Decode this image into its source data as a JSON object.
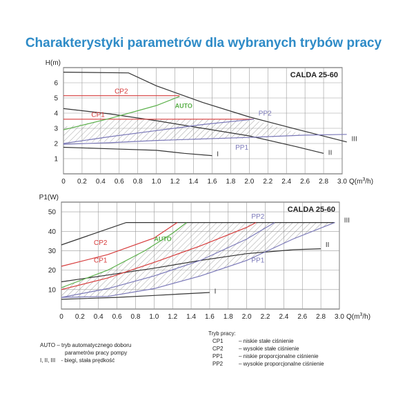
{
  "page_title": "Charakterystyki parametrów dla wybranych trybów pracy",
  "chart_data": [
    {
      "type": "line",
      "title": "CALDA 25-60",
      "ylabel": "H(m)",
      "xlabel_main": "Q(m",
      "xlabel_sup": "3",
      "xlabel_end": "/h)",
      "xlim": [
        0,
        3.0
      ],
      "ylim": [
        0,
        7
      ],
      "xticks": [
        0,
        0.2,
        0.4,
        0.6,
        0.8,
        1.0,
        1.2,
        1.4,
        1.6,
        1.8,
        2.0,
        2.2,
        2.4,
        2.6,
        2.8,
        3.0
      ],
      "xtick_labels": [
        "0",
        "0.2",
        "0.4",
        "0.6",
        "0.8",
        "1.0",
        "1.2",
        "1.4",
        "1.6",
        "1.8",
        "2.0",
        "2.2",
        "2.4",
        "2.6",
        "2.8",
        "3.0"
      ],
      "yticks": [
        1,
        2,
        3,
        4,
        5,
        6
      ],
      "ytick_labels": [
        "1",
        "2",
        "3",
        "4",
        "5",
        "6"
      ],
      "grid": true,
      "hatched_region": [
        [
          0,
          3.1
        ],
        [
          0.5,
          3.55
        ],
        [
          1.0,
          3.62
        ],
        [
          1.5,
          3.62
        ],
        [
          2.0,
          3.6
        ],
        [
          2.05,
          3.55
        ],
        [
          2.6,
          2.55
        ],
        [
          3.05,
          2.1
        ],
        [
          2.6,
          2.55
        ],
        [
          2.1,
          2.35
        ],
        [
          1.5,
          2.25
        ],
        [
          1.0,
          2.15
        ],
        [
          0.5,
          2.1
        ],
        [
          0,
          2.05
        ]
      ],
      "series": [
        {
          "name": "III",
          "color": "#333333",
          "points": [
            [
              0,
              6.7
            ],
            [
              0.7,
              6.65
            ],
            [
              1.0,
              5.8
            ],
            [
              1.5,
              4.7
            ],
            [
              2.0,
              3.75
            ],
            [
              2.5,
              2.95
            ],
            [
              3.05,
              2.1
            ]
          ]
        },
        {
          "name": "II",
          "color": "#333333",
          "points": [
            [
              0,
              4.3
            ],
            [
              0.5,
              3.95
            ],
            [
              1.0,
              3.5
            ],
            [
              1.5,
              3.0
            ],
            [
              2.0,
              2.5
            ],
            [
              2.5,
              1.8
            ],
            [
              2.8,
              1.35
            ]
          ]
        },
        {
          "name": "I",
          "color": "#333333",
          "points": [
            [
              0,
              1.75
            ],
            [
              0.5,
              1.65
            ],
            [
              1.0,
              1.55
            ],
            [
              1.3,
              1.35
            ],
            [
              1.6,
              1.2
            ]
          ]
        },
        {
          "name": "CP2",
          "color": "#d63b3b",
          "points": [
            [
              0,
              5.15
            ],
            [
              1.25,
              5.15
            ]
          ]
        },
        {
          "name": "CP1",
          "color": "#d63b3b",
          "points": [
            [
              0,
              3.6
            ],
            [
              2.05,
              3.6
            ]
          ]
        },
        {
          "name": "AUTO",
          "color": "#5bb04a",
          "points": [
            [
              0,
              2.9
            ],
            [
              0.5,
              3.65
            ],
            [
              1.0,
              4.5
            ],
            [
              1.25,
              5.1
            ]
          ]
        },
        {
          "name": "PP2",
          "color": "#7a78b8",
          "points": [
            [
              0,
              2.0
            ],
            [
              0.5,
              2.45
            ],
            [
              1.0,
              2.85
            ],
            [
              1.5,
              3.25
            ],
            [
              2.05,
              3.6
            ]
          ]
        },
        {
          "name": "PP1",
          "color": "#7a78b8",
          "points": [
            [
              0,
              1.95
            ],
            [
              0.5,
              2.05
            ],
            [
              1.0,
              2.2
            ],
            [
              1.5,
              2.3
            ],
            [
              2.0,
              2.4
            ],
            [
              2.6,
              2.55
            ],
            [
              3.05,
              2.6
            ]
          ]
        }
      ],
      "labels": [
        {
          "text": "CP2",
          "color": "#d63b3b",
          "x": 0.55,
          "y": 5.3
        },
        {
          "text": "CP1",
          "color": "#d63b3b",
          "x": 0.3,
          "y": 3.75
        },
        {
          "text": "AUTO",
          "color": "#5bb04a",
          "x": 1.2,
          "y": 4.35,
          "bold": true
        },
        {
          "text": "PP2",
          "color": "#7a78b8",
          "x": 2.1,
          "y": 3.85
        },
        {
          "text": "PP1",
          "color": "#7a78b8",
          "x": 1.85,
          "y": 1.6
        },
        {
          "text": "III",
          "color": "#333333",
          "x": 3.1,
          "y": 2.15
        },
        {
          "text": "II",
          "color": "#333333",
          "x": 2.85,
          "y": 1.25
        },
        {
          "text": "I",
          "color": "#333333",
          "x": 1.65,
          "y": 1.15
        }
      ]
    },
    {
      "type": "line",
      "title": "CALDA 25-60",
      "ylabel": "P1(W)",
      "xlabel_main": "Q(m",
      "xlabel_sup": "3",
      "xlabel_end": "/h)",
      "xlim": [
        0,
        3.0
      ],
      "ylim": [
        0,
        55
      ],
      "xticks": [
        0,
        0.2,
        0.4,
        0.6,
        0.8,
        1.0,
        1.2,
        1.4,
        1.6,
        1.8,
        2.0,
        2.2,
        2.4,
        2.6,
        2.8,
        3.0
      ],
      "xtick_labels": [
        "0",
        "0.2",
        "0.4",
        "0.6",
        "0.8",
        "1.0",
        "1.2",
        "1.4",
        "1.6",
        "1.8",
        "2.0",
        "2.2",
        "2.4",
        "2.6",
        "2.8",
        "3.0"
      ],
      "yticks": [
        10,
        20,
        30,
        40,
        50
      ],
      "ytick_labels": [
        "10",
        "20",
        "30",
        "40",
        "50"
      ],
      "grid": true,
      "hatched_region": [
        [
          0,
          11
        ],
        [
          0.5,
          20
        ],
        [
          0.9,
          30
        ],
        [
          1.2,
          39
        ],
        [
          1.35,
          44.5
        ],
        [
          2.95,
          44.5
        ],
        [
          2.5,
          36
        ],
        [
          2.0,
          25
        ],
        [
          1.5,
          17
        ],
        [
          1.0,
          10.5
        ],
        [
          0.5,
          6.5
        ],
        [
          0,
          6
        ]
      ],
      "series": [
        {
          "name": "III",
          "color": "#333333",
          "points": [
            [
              0,
              33
            ],
            [
              0.7,
              44.5
            ],
            [
              2.95,
              44.5
            ]
          ]
        },
        {
          "name": "II",
          "color": "#333333",
          "points": [
            [
              0,
              14
            ],
            [
              0.5,
              17.5
            ],
            [
              1.0,
              21
            ],
            [
              1.5,
              25
            ],
            [
              2.0,
              28.5
            ],
            [
              2.5,
              30.5
            ],
            [
              2.8,
              31
            ]
          ]
        },
        {
          "name": "I",
          "color": "#333333",
          "points": [
            [
              0,
              5
            ],
            [
              0.6,
              6
            ],
            [
              1.0,
              7
            ],
            [
              1.6,
              8.5
            ]
          ]
        },
        {
          "name": "CP2",
          "color": "#d63b3b",
          "points": [
            [
              0,
              22
            ],
            [
              0.5,
              28
            ],
            [
              1.0,
              36.5
            ],
            [
              1.25,
              44.5
            ]
          ]
        },
        {
          "name": "CP1",
          "color": "#d63b3b",
          "points": [
            [
              0,
              10
            ],
            [
              0.5,
              16
            ],
            [
              1.0,
              24
            ],
            [
              1.5,
              32.5
            ],
            [
              2.0,
              42
            ],
            [
              2.1,
              44.5
            ]
          ]
        },
        {
          "name": "AUTO",
          "color": "#5bb04a",
          "points": [
            [
              0,
              11
            ],
            [
              0.5,
              20
            ],
            [
              0.9,
              30
            ],
            [
              1.2,
              39
            ],
            [
              1.35,
              44.5
            ]
          ]
        },
        {
          "name": "PP2",
          "color": "#7a78b8",
          "points": [
            [
              0,
              6
            ],
            [
              0.5,
              10.5
            ],
            [
              1.0,
              17
            ],
            [
              1.5,
              25
            ],
            [
              2.0,
              36
            ],
            [
              2.3,
              44.5
            ]
          ]
        },
        {
          "name": "PP1",
          "color": "#7a78b8",
          "points": [
            [
              0,
              6
            ],
            [
              0.5,
              6.5
            ],
            [
              1.0,
              10.5
            ],
            [
              1.5,
              17
            ],
            [
              2.0,
              25
            ],
            [
              2.5,
              36
            ],
            [
              2.95,
              44.5
            ]
          ]
        }
      ],
      "labels": [
        {
          "text": "CP2",
          "color": "#d63b3b",
          "x": 0.35,
          "y": 33
        },
        {
          "text": "CP1",
          "color": "#d63b3b",
          "x": 0.35,
          "y": 24
        },
        {
          "text": "AUTO",
          "color": "#5bb04a",
          "x": 1.0,
          "y": 35,
          "bold": true
        },
        {
          "text": "PP2",
          "color": "#7a78b8",
          "x": 2.05,
          "y": 46.5
        },
        {
          "text": "PP1",
          "color": "#7a78b8",
          "x": 2.05,
          "y": 24
        },
        {
          "text": "III",
          "color": "#333333",
          "x": 3.05,
          "y": 44.5
        },
        {
          "text": "II",
          "color": "#333333",
          "x": 2.85,
          "y": 32
        },
        {
          "text": "I",
          "color": "#333333",
          "x": 1.65,
          "y": 8
        }
      ]
    }
  ],
  "legend_left": {
    "auto_key": "AUTO",
    "auto_text": "– tryb automatycznego doboru",
    "auto_text2": "parametrów pracy pompy",
    "speeds_key": "I, II, III",
    "speeds_text": "- biegi, stała prędkość"
  },
  "legend_right": {
    "title": "Tryb pracy:",
    "items": [
      {
        "key": "CP1",
        "text": "– niskie stałe ciśnienie"
      },
      {
        "key": "CP2",
        "text": "– wysokie stałe ciśnienie"
      },
      {
        "key": "PP1",
        "text": "– niskie proporcjonalne ciśnienie"
      },
      {
        "key": "PP2",
        "text": "– wysokie proporcjonalne ciśnienie"
      }
    ]
  }
}
